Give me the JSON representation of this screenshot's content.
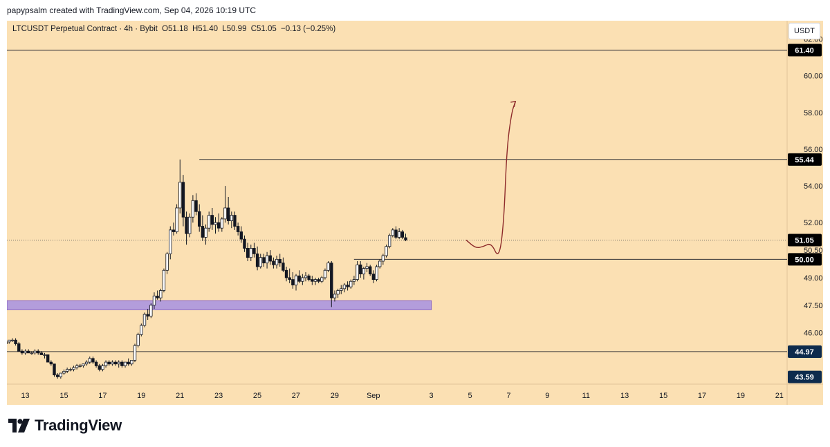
{
  "header": {
    "credit": "papypsalm created with TradingView.com, Sep 04, 2026 10:19 UTC"
  },
  "legend": {
    "symbol": "LTCUSDT Perpetual Contract · 4h · Bybit",
    "open": "O51.18",
    "high": "H51.40",
    "low": "L50.99",
    "close": "C51.05",
    "change": "−0.13 (−0.25%)"
  },
  "currency_label": "USDT",
  "brand": "TradingView",
  "colors": {
    "background": "#fbe0b3",
    "candle_up": "#ffffff",
    "candle_down": "#131722",
    "zone": "#b39ddb",
    "zone_border": "#7e57c2",
    "arrow": "#8d2a2a",
    "badge_dark": "#000000",
    "badge_navy": "#0d2b4d"
  },
  "chart_data": {
    "type": "candlestick",
    "timeframe": "4h",
    "ylim": [
      43.2,
      63.0
    ],
    "y_ticks": [
      "62.00",
      "60.00",
      "58.00",
      "56.00",
      "54.00",
      "52.00",
      "50.50",
      "49.00",
      "47.50",
      "46.00"
    ],
    "y_tick_values": [
      62.0,
      60.0,
      58.0,
      56.0,
      54.0,
      52.0,
      50.5,
      49.0,
      47.5,
      46.0
    ],
    "x_ticks": [
      "13",
      "15",
      "17",
      "19",
      "21",
      "23",
      "25",
      "27",
      "29",
      "Sep",
      "3",
      "5",
      "7",
      "9",
      "11",
      "13",
      "15",
      "17",
      "19",
      "21"
    ],
    "x_tick_days": [
      13,
      15,
      17,
      19,
      21,
      23,
      25,
      27,
      29,
      31,
      34,
      36,
      38,
      40,
      42,
      44,
      46,
      48,
      50,
      52
    ],
    "x_range_days": [
      12.05,
      52.4
    ],
    "candles_start_day": 12.0,
    "candles_step_days": 0.1667,
    "candles": [
      [
        45.4,
        45.5,
        45.3,
        45.5
      ],
      [
        45.5,
        45.6,
        45.4,
        45.6
      ],
      [
        45.6,
        45.7,
        45.5,
        45.6
      ],
      [
        45.6,
        45.7,
        45.3,
        45.4
      ],
      [
        45.4,
        45.5,
        45.0,
        45.0
      ],
      [
        45.0,
        45.1,
        44.8,
        44.9
      ],
      [
        44.9,
        45.1,
        44.8,
        45.0
      ],
      [
        45.0,
        45.1,
        44.9,
        44.9
      ],
      [
        44.9,
        45.0,
        44.8,
        44.9
      ],
      [
        44.9,
        45.1,
        44.8,
        45.0
      ],
      [
        45.0,
        45.1,
        44.8,
        44.9
      ],
      [
        44.9,
        45.0,
        44.8,
        44.8
      ],
      [
        44.8,
        44.9,
        44.6,
        44.8
      ],
      [
        44.8,
        44.8,
        44.4,
        44.4
      ],
      [
        44.4,
        44.5,
        44.2,
        44.3
      ],
      [
        44.3,
        44.3,
        43.6,
        43.7
      ],
      [
        43.7,
        43.8,
        43.5,
        43.6
      ],
      [
        43.6,
        43.8,
        43.5,
        43.8
      ],
      [
        43.8,
        44.0,
        43.7,
        43.9
      ],
      [
        43.9,
        44.1,
        43.8,
        44.0
      ],
      [
        44.0,
        44.1,
        43.9,
        44.0
      ],
      [
        44.0,
        44.2,
        43.9,
        44.1
      ],
      [
        44.1,
        44.3,
        44.0,
        44.2
      ],
      [
        44.2,
        44.3,
        44.1,
        44.2
      ],
      [
        44.2,
        44.3,
        44.1,
        44.3
      ],
      [
        44.3,
        44.5,
        44.2,
        44.4
      ],
      [
        44.4,
        44.7,
        44.3,
        44.6
      ],
      [
        44.6,
        44.7,
        44.3,
        44.4
      ],
      [
        44.4,
        44.5,
        44.1,
        44.2
      ],
      [
        44.2,
        44.3,
        43.9,
        44.0
      ],
      [
        44.0,
        44.3,
        43.9,
        44.2
      ],
      [
        44.2,
        44.5,
        44.1,
        44.4
      ],
      [
        44.4,
        44.5,
        44.2,
        44.3
      ],
      [
        44.3,
        44.5,
        44.2,
        44.4
      ],
      [
        44.4,
        44.5,
        44.2,
        44.3
      ],
      [
        44.3,
        44.5,
        44.1,
        44.4
      ],
      [
        44.4,
        44.5,
        44.1,
        44.2
      ],
      [
        44.2,
        44.4,
        44.1,
        44.4
      ],
      [
        44.4,
        44.6,
        44.2,
        44.3
      ],
      [
        44.3,
        44.5,
        44.2,
        44.5
      ],
      [
        44.5,
        45.4,
        44.4,
        45.3
      ],
      [
        45.3,
        46.0,
        45.2,
        45.9
      ],
      [
        45.9,
        46.5,
        45.8,
        46.4
      ],
      [
        46.4,
        47.1,
        46.3,
        47.0
      ],
      [
        47.0,
        47.3,
        46.7,
        46.9
      ],
      [
        46.9,
        47.6,
        46.8,
        47.5
      ],
      [
        47.5,
        48.2,
        47.3,
        48.0
      ],
      [
        48.0,
        48.3,
        47.8,
        47.9
      ],
      [
        47.9,
        48.4,
        47.7,
        48.3
      ],
      [
        48.3,
        49.5,
        48.2,
        49.4
      ],
      [
        49.4,
        50.4,
        49.2,
        50.3
      ],
      [
        50.3,
        51.8,
        50.0,
        51.6
      ],
      [
        51.6,
        52.0,
        51.3,
        51.5
      ],
      [
        51.5,
        53.0,
        51.4,
        52.8
      ],
      [
        52.8,
        55.44,
        52.5,
        54.2
      ],
      [
        54.2,
        54.6,
        51.8,
        52.3
      ],
      [
        52.3,
        52.6,
        50.8,
        51.4
      ],
      [
        51.4,
        52.5,
        51.2,
        52.3
      ],
      [
        52.3,
        53.5,
        52.0,
        53.2
      ],
      [
        53.2,
        53.6,
        52.4,
        52.6
      ],
      [
        52.6,
        53.0,
        51.5,
        51.8
      ],
      [
        51.8,
        52.4,
        51.0,
        51.2
      ],
      [
        51.2,
        51.9,
        50.8,
        51.7
      ],
      [
        51.7,
        52.6,
        51.5,
        52.4
      ],
      [
        52.4,
        52.8,
        51.6,
        51.9
      ],
      [
        51.9,
        52.3,
        51.4,
        52.0
      ],
      [
        52.0,
        52.5,
        51.5,
        51.7
      ],
      [
        51.7,
        52.3,
        51.5,
        52.2
      ],
      [
        52.2,
        54.0,
        52.0,
        52.8
      ],
      [
        52.8,
        53.4,
        51.9,
        52.1
      ],
      [
        52.1,
        52.6,
        51.7,
        52.4
      ],
      [
        52.4,
        52.6,
        51.6,
        51.8
      ],
      [
        51.8,
        52.0,
        51.3,
        51.5
      ],
      [
        51.5,
        51.8,
        50.9,
        51.1
      ],
      [
        51.1,
        51.3,
        50.4,
        50.6
      ],
      [
        50.6,
        50.9,
        49.9,
        50.1
      ],
      [
        50.1,
        50.8,
        49.9,
        50.6
      ],
      [
        50.6,
        50.9,
        50.1,
        50.3
      ],
      [
        50.3,
        50.7,
        49.4,
        49.6
      ],
      [
        49.6,
        50.3,
        49.5,
        50.1
      ],
      [
        50.1,
        50.3,
        49.6,
        49.8
      ],
      [
        49.8,
        50.4,
        49.5,
        50.2
      ],
      [
        50.2,
        50.5,
        49.7,
        49.9
      ],
      [
        49.9,
        50.1,
        49.5,
        49.7
      ],
      [
        49.7,
        50.2,
        49.5,
        50.0
      ],
      [
        50.0,
        50.3,
        49.6,
        49.8
      ],
      [
        49.8,
        50.1,
        49.3,
        49.4
      ],
      [
        49.4,
        49.6,
        48.8,
        49.0
      ],
      [
        49.0,
        49.5,
        48.7,
        48.9
      ],
      [
        48.9,
        49.3,
        48.4,
        48.6
      ],
      [
        48.6,
        49.2,
        48.3,
        49.1
      ],
      [
        49.1,
        49.4,
        48.7,
        48.8
      ],
      [
        48.8,
        49.2,
        48.6,
        49.0
      ],
      [
        49.0,
        49.3,
        48.8,
        49.1
      ],
      [
        49.1,
        49.2,
        48.8,
        48.9
      ],
      [
        48.9,
        49.1,
        48.6,
        48.8
      ],
      [
        48.8,
        49.0,
        48.6,
        48.9
      ],
      [
        48.9,
        49.0,
        48.7,
        48.8
      ],
      [
        48.8,
        49.1,
        48.7,
        49.0
      ],
      [
        49.0,
        49.5,
        48.9,
        49.4
      ],
      [
        49.4,
        49.9,
        49.3,
        49.8
      ],
      [
        49.8,
        49.9,
        47.4,
        47.9
      ],
      [
        47.9,
        48.3,
        47.7,
        48.1
      ],
      [
        48.1,
        48.4,
        47.9,
        48.3
      ],
      [
        48.3,
        48.6,
        48.1,
        48.4
      ],
      [
        48.4,
        48.7,
        48.2,
        48.6
      ],
      [
        48.6,
        48.8,
        48.3,
        48.5
      ],
      [
        48.5,
        48.9,
        48.4,
        48.8
      ],
      [
        48.8,
        49.1,
        48.6,
        48.9
      ],
      [
        48.9,
        49.9,
        48.8,
        49.7
      ],
      [
        49.7,
        49.9,
        49.0,
        49.2
      ],
      [
        49.2,
        49.6,
        48.9,
        49.5
      ],
      [
        49.5,
        49.8,
        49.3,
        49.6
      ],
      [
        49.6,
        49.7,
        49.1,
        49.2
      ],
      [
        49.2,
        49.4,
        48.7,
        48.9
      ],
      [
        48.9,
        49.7,
        48.8,
        49.6
      ],
      [
        49.6,
        50.0,
        49.5,
        49.9
      ],
      [
        49.9,
        50.3,
        49.7,
        50.2
      ],
      [
        50.2,
        50.8,
        50.1,
        50.7
      ],
      [
        50.7,
        51.4,
        50.6,
        51.3
      ],
      [
        51.3,
        51.7,
        51.2,
        51.6
      ],
      [
        51.6,
        51.8,
        51.1,
        51.2
      ],
      [
        51.2,
        51.7,
        51.1,
        51.5
      ],
      [
        51.5,
        51.6,
        51.1,
        51.2
      ],
      [
        51.18,
        51.4,
        50.99,
        51.05
      ]
    ],
    "horizontal_levels": [
      {
        "price": 61.4,
        "label": "61.40",
        "badge": "dark"
      },
      {
        "price": 55.44,
        "label": "55.44",
        "badge": "dark",
        "start_day": 22.0
      },
      {
        "price": 51.05,
        "label": "51.05",
        "badge": "dark",
        "dotted": true
      },
      {
        "price": 50.0,
        "label": "50.00",
        "badge": "dark",
        "start_day": 30.0,
        "end_day": 37.0
      },
      {
        "price": 44.97,
        "label": "44.97",
        "badge": "navy"
      },
      {
        "price": 43.59,
        "label": "43.59",
        "badge": "navy",
        "no_line": true
      }
    ],
    "zone": {
      "from_day": 12.05,
      "to_day": 34.0,
      "low": 47.25,
      "high": 47.75
    },
    "projection_path": [
      [
        35.8,
        51.05
      ],
      [
        36.3,
        50.6
      ],
      [
        36.7,
        50.7
      ],
      [
        37.1,
        50.9
      ],
      [
        37.5,
        50.0
      ],
      [
        37.75,
        52.0
      ],
      [
        37.9,
        56.0
      ],
      [
        38.15,
        58.0
      ],
      [
        38.35,
        58.6
      ]
    ]
  }
}
